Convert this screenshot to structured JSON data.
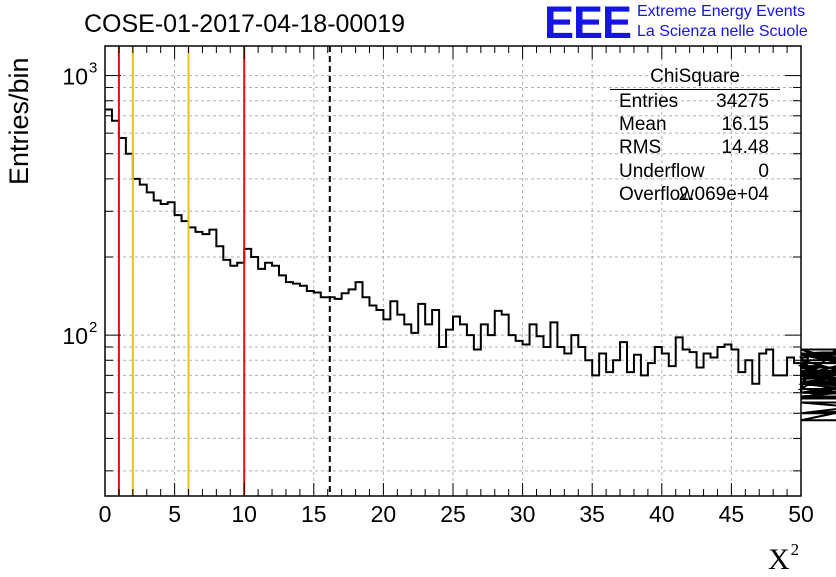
{
  "title": "COSE-01-2017-04-18-00019",
  "logo": {
    "mark": "EEE",
    "line1": "Extreme Energy Events",
    "line2": "La Scienza nelle Scuole",
    "color": "#1414e6"
  },
  "stats": {
    "name": "ChiSquare",
    "rows": [
      {
        "key": "Entries",
        "value": "34275"
      },
      {
        "key": "Mean",
        "value": "16.15"
      },
      {
        "key": "RMS",
        "value": "14.48"
      },
      {
        "key": "Underflow",
        "value": "0"
      },
      {
        "key": "Overflow",
        "value": "2.069e+04"
      }
    ]
  },
  "chart_data": {
    "type": "histogram",
    "title": "COSE-01-2017-04-18-00019",
    "xlabel": "X",
    "xlabel_superscript": "2",
    "ylabel": "Entries/bin",
    "xlim": [
      0,
      50
    ],
    "ylim": [
      24,
      1300
    ],
    "yscale": "log",
    "grid": true,
    "x_ticks": [
      0,
      5,
      10,
      15,
      20,
      25,
      30,
      35,
      40,
      45,
      50
    ],
    "y_ticks": [
      {
        "value": 100,
        "label": "10",
        "exp": "2"
      },
      {
        "value": 1000,
        "label": "10",
        "exp": "3"
      }
    ],
    "bin_width": 0.5,
    "values": [
      740,
      670,
      575,
      500,
      400,
      380,
      355,
      330,
      320,
      325,
      290,
      275,
      260,
      250,
      245,
      255,
      220,
      195,
      185,
      190,
      215,
      200,
      180,
      190,
      185,
      170,
      160,
      158,
      155,
      148,
      146,
      140,
      140,
      138,
      145,
      150,
      160,
      140,
      130,
      125,
      115,
      135,
      120,
      110,
      102,
      132,
      110,
      125,
      90,
      105,
      118,
      110,
      100,
      88,
      110,
      100,
      124,
      120,
      100,
      95,
      92,
      110,
      99,
      90,
      112,
      90,
      85,
      100,
      90,
      80,
      70,
      85,
      72,
      80,
      94,
      72,
      84,
      70,
      78,
      90,
      85,
      76,
      98,
      88,
      86,
      75,
      85,
      82,
      90,
      92,
      88,
      72,
      80,
      65,
      85,
      88,
      70,
      70,
      82,
      78,
      60,
      82,
      70,
      76,
      65,
      88,
      78,
      62,
      84,
      75,
      66,
      70,
      85,
      88,
      70,
      60,
      72,
      60,
      68,
      78,
      80,
      57,
      85,
      73,
      60,
      58,
      68,
      84,
      66,
      55,
      47,
      70,
      60,
      65,
      72,
      50,
      65,
      50,
      55
    ],
    "markers": [
      {
        "x": 1,
        "color": "#e01010",
        "style": "solid"
      },
      {
        "x": 2,
        "color": "#e6c21a",
        "style": "solid"
      },
      {
        "x": 6,
        "color": "#e6c21a",
        "style": "solid"
      },
      {
        "x": 10,
        "color": "#e01010",
        "style": "solid"
      },
      {
        "x": 16.15,
        "color": "#000000",
        "style": "dashed"
      }
    ]
  }
}
